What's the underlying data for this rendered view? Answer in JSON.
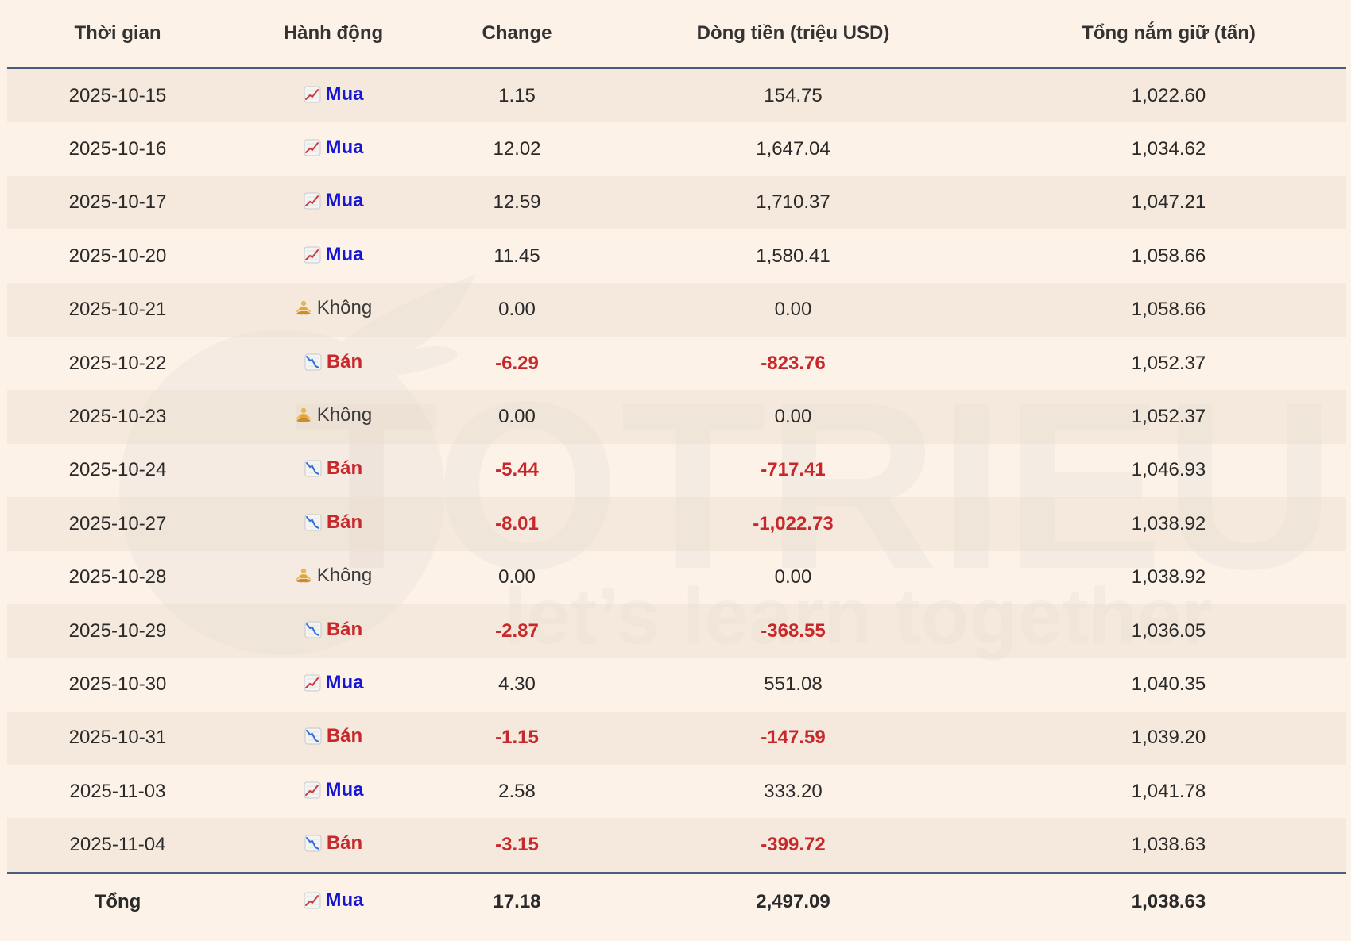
{
  "watermark": {
    "brand": "TOTRIEU",
    "tagline": "let’s learn together"
  },
  "icons": {
    "buy": "chart-increasing-icon",
    "sell": "chart-decreasing-icon",
    "none": "person-meditating-icon"
  },
  "colors": {
    "buy": "#1515d6",
    "sell": "#c8282b",
    "header_rule": "#4a5d7e",
    "background": "#fcf2e8"
  },
  "table": {
    "headers": [
      "Thời gian",
      "Hành động",
      "Change",
      "Dòng tiền (triệu USD)",
      "Tổng nắm giữ (tấn)"
    ],
    "rows": [
      {
        "date": "2025-10-15",
        "action": "Mua",
        "type": "buy",
        "change": "1.15",
        "flow": "154.75",
        "holding": "1,022.60"
      },
      {
        "date": "2025-10-16",
        "action": "Mua",
        "type": "buy",
        "change": "12.02",
        "flow": "1,647.04",
        "holding": "1,034.62"
      },
      {
        "date": "2025-10-17",
        "action": "Mua",
        "type": "buy",
        "change": "12.59",
        "flow": "1,710.37",
        "holding": "1,047.21"
      },
      {
        "date": "2025-10-20",
        "action": "Mua",
        "type": "buy",
        "change": "11.45",
        "flow": "1,580.41",
        "holding": "1,058.66"
      },
      {
        "date": "2025-10-21",
        "action": "Không",
        "type": "none",
        "change": "0.00",
        "flow": "0.00",
        "holding": "1,058.66"
      },
      {
        "date": "2025-10-22",
        "action": "Bán",
        "type": "sell",
        "change": "-6.29",
        "flow": "-823.76",
        "holding": "1,052.37"
      },
      {
        "date": "2025-10-23",
        "action": "Không",
        "type": "none",
        "change": "0.00",
        "flow": "0.00",
        "holding": "1,052.37"
      },
      {
        "date": "2025-10-24",
        "action": "Bán",
        "type": "sell",
        "change": "-5.44",
        "flow": "-717.41",
        "holding": "1,046.93"
      },
      {
        "date": "2025-10-27",
        "action": "Bán",
        "type": "sell",
        "change": "-8.01",
        "flow": "-1,022.73",
        "holding": "1,038.92"
      },
      {
        "date": "2025-10-28",
        "action": "Không",
        "type": "none",
        "change": "0.00",
        "flow": "0.00",
        "holding": "1,038.92"
      },
      {
        "date": "2025-10-29",
        "action": "Bán",
        "type": "sell",
        "change": "-2.87",
        "flow": "-368.55",
        "holding": "1,036.05"
      },
      {
        "date": "2025-10-30",
        "action": "Mua",
        "type": "buy",
        "change": "4.30",
        "flow": "551.08",
        "holding": "1,040.35"
      },
      {
        "date": "2025-10-31",
        "action": "Bán",
        "type": "sell",
        "change": "-1.15",
        "flow": "-147.59",
        "holding": "1,039.20"
      },
      {
        "date": "2025-11-03",
        "action": "Mua",
        "type": "buy",
        "change": "2.58",
        "flow": "333.20",
        "holding": "1,041.78"
      },
      {
        "date": "2025-11-04",
        "action": "Bán",
        "type": "sell",
        "change": "-3.15",
        "flow": "-399.72",
        "holding": "1,038.63"
      }
    ],
    "total": {
      "label": "Tổng",
      "action": "Mua",
      "type": "buy",
      "change": "17.18",
      "flow": "2,497.09",
      "holding": "1,038.63"
    }
  }
}
